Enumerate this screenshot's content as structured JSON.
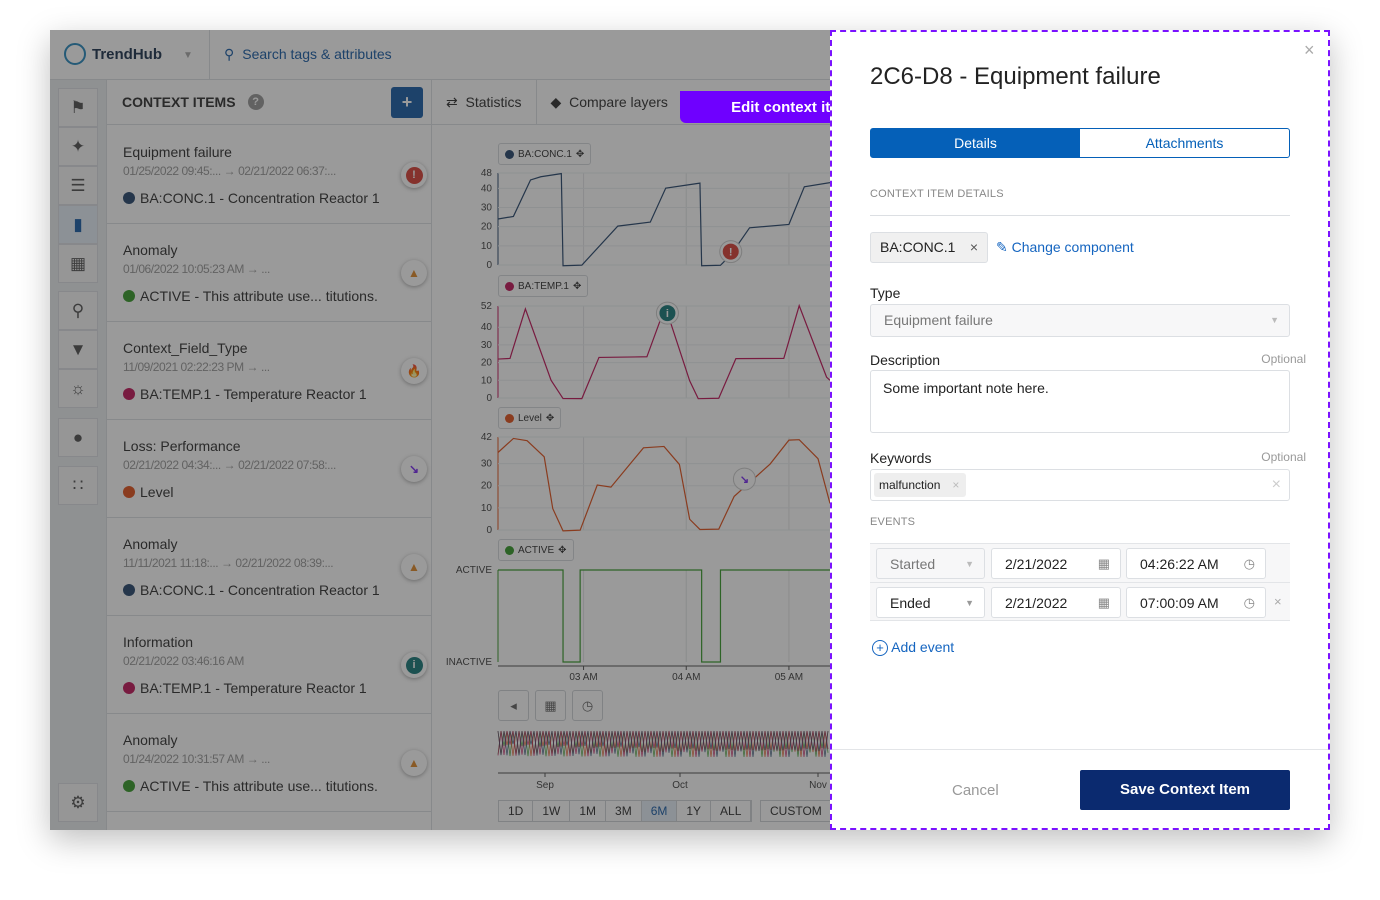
{
  "app": {
    "name": "TrendHub",
    "search_placeholder": "Search tags & attributes"
  },
  "rail": {
    "items": [
      "tag-icon",
      "asset-icon",
      "layers-icon",
      "comment-icon",
      "dashboard-icon",
      "search-icon",
      "filter-icon",
      "fingerprint-icon",
      "bulb-icon",
      "scatter-icon",
      "gear-icon"
    ],
    "active": "comment-icon"
  },
  "context_panel": {
    "title": "CONTEXT ITEMS",
    "add_label": "+",
    "items": [
      {
        "title": "Equipment failure",
        "dates": "01/25/2022 09:45:...  →  02/21/2022 06:37:...",
        "attribute": "BA:CONC.1 - Concentration Reactor 1",
        "attr_color": "#2b4a6f",
        "icon": "exclamation-icon",
        "icon_color": "#d9433a"
      },
      {
        "title": "Anomaly",
        "dates": "01/06/2022 10:05:23 AM  →  ...",
        "attribute": "ACTIVE - This attribute use... titutions.",
        "attr_color": "#3a9b2c",
        "icon": "warning-icon",
        "icon_color": "#e08a2c"
      },
      {
        "title": "Context_Field_Type",
        "dates": "11/09/2021 02:22:23 PM  →  ...",
        "attribute": "BA:TEMP.1 - Temperature Reactor 1",
        "attr_color": "#c2185b",
        "icon": "flame-icon",
        "icon_color": "#e08a2c"
      },
      {
        "title": "Loss: Performance",
        "dates": "02/21/2022 04:34:...  →  02/21/2022 07:58:...",
        "attribute": "Level",
        "attr_color": "#e2541f",
        "icon": "trend-down-icon",
        "icon_color": "#7b2cf0"
      },
      {
        "title": "Anomaly",
        "dates": "11/11/2021 11:18:...  →  02/21/2022 08:39:...",
        "attribute": "BA:CONC.1 - Concentration Reactor 1",
        "attr_color": "#2b4a6f",
        "icon": "warning-icon",
        "icon_color": "#e08a2c"
      },
      {
        "title": "Information",
        "dates": "02/21/2022 03:46:16 AM",
        "attribute": "BA:TEMP.1 - Temperature Reactor 1",
        "attr_color": "#c2185b",
        "icon": "info-icon",
        "icon_color": "#1b7a7a"
      },
      {
        "title": "Anomaly",
        "dates": "01/24/2022 10:31:57 AM  →  ...",
        "attribute": "ACTIVE - This attribute use... titutions.",
        "attr_color": "#3a9b2c",
        "icon": "warning-icon",
        "icon_color": "#e08a2c"
      }
    ]
  },
  "chart_toolbar": {
    "statistics": "Statistics",
    "compare_layers": "Compare layers"
  },
  "chart_data": [
    {
      "type": "line",
      "legend": "BA:CONC.1",
      "color": "#2b4a6f",
      "ylim": [
        0,
        48
      ],
      "yticks": [
        0,
        10,
        20,
        30,
        40,
        48
      ],
      "points": [
        [
          "02:10",
          24
        ],
        [
          "02:19",
          25
        ],
        [
          "02:29",
          44
        ],
        [
          "02:35",
          46
        ],
        [
          "02:47",
          48
        ],
        [
          "02:48",
          0
        ],
        [
          "02:59",
          0
        ],
        [
          "03:20",
          20
        ],
        [
          "03:39",
          22
        ],
        [
          "03:48",
          40
        ],
        [
          "04:08",
          43
        ],
        [
          "04:09",
          0
        ],
        [
          "04:20",
          0
        ],
        [
          "04:26",
          5
        ],
        [
          "04:37",
          19
        ],
        [
          "05:00",
          21
        ],
        [
          "05:09",
          41
        ],
        [
          "05:24",
          43
        ]
      ]
    },
    {
      "type": "line",
      "legend": "BA:TEMP.1",
      "color": "#c2185b",
      "ylim": [
        0,
        52
      ],
      "yticks": [
        0,
        10,
        20,
        30,
        40,
        52
      ],
      "points": [
        [
          "02:10",
          22
        ],
        [
          "02:17",
          22
        ],
        [
          "02:26",
          50
        ],
        [
          "02:41",
          10
        ],
        [
          "02:48",
          0
        ],
        [
          "02:59",
          0
        ],
        [
          "03:09",
          23
        ],
        [
          "03:37",
          23
        ],
        [
          "03:45",
          44
        ],
        [
          "03:50",
          45
        ],
        [
          "04:02",
          10
        ],
        [
          "04:07",
          0
        ],
        [
          "04:19",
          0
        ],
        [
          "04:29",
          22
        ],
        [
          "04:57",
          22
        ],
        [
          "05:06",
          52
        ],
        [
          "05:22",
          12
        ],
        [
          "05:24",
          10
        ]
      ]
    },
    {
      "type": "line",
      "legend": "Level",
      "color": "#e2541f",
      "ylim": [
        0,
        42
      ],
      "yticks": [
        0,
        10,
        20,
        30,
        42
      ],
      "points": [
        [
          "02:10",
          35
        ],
        [
          "02:19",
          41
        ],
        [
          "02:27",
          40
        ],
        [
          "02:37",
          33
        ],
        [
          "02:42",
          10
        ],
        [
          "02:48",
          0
        ],
        [
          "02:58",
          0
        ],
        [
          "03:08",
          20
        ],
        [
          "03:16",
          19
        ],
        [
          "03:35",
          37
        ],
        [
          "03:47",
          38
        ],
        [
          "03:56",
          30
        ],
        [
          "04:02",
          5
        ],
        [
          "04:08",
          0
        ],
        [
          "04:19",
          0
        ],
        [
          "04:28",
          15
        ],
        [
          "04:49",
          30
        ],
        [
          "05:00",
          41
        ],
        [
          "05:06",
          41
        ],
        [
          "05:17",
          32
        ],
        [
          "05:24",
          12
        ]
      ]
    },
    {
      "type": "line",
      "legend": "ACTIVE",
      "color": "#3a9b2c",
      "categories": [
        "INACTIVE",
        "ACTIVE"
      ],
      "points": [
        [
          "02:10",
          1
        ],
        [
          "02:48",
          1
        ],
        [
          "02:48",
          0
        ],
        [
          "02:58",
          0
        ],
        [
          "02:58",
          1
        ],
        [
          "04:09",
          1
        ],
        [
          "04:09",
          0
        ],
        [
          "04:20",
          0
        ],
        [
          "04:20",
          1
        ],
        [
          "05:24",
          1
        ]
      ]
    }
  ],
  "x_axis": {
    "ticks": [
      {
        "t": "03:00",
        "label": "03 AM"
      },
      {
        "t": "04:00",
        "label": "04 AM"
      },
      {
        "t": "05:00",
        "label": "05 AM"
      }
    ],
    "range": [
      "02:10",
      "05:24"
    ]
  },
  "annotations": [
    {
      "chart": 0,
      "t": "04:26",
      "v": 7,
      "icon": "exclamation-icon",
      "color": "#d9433a"
    },
    {
      "chart": 1,
      "t": "03:49",
      "v": 48,
      "icon": "info-icon",
      "color": "#1b7a7a"
    },
    {
      "chart": 2,
      "t": "04:34",
      "v": 23,
      "icon": "trend-down-icon",
      "color": "#7b2cf0"
    }
  ],
  "navigator": {
    "months": [
      "Sep",
      "Oct",
      "Nov"
    ]
  },
  "ranges": {
    "options": [
      "1D",
      "1W",
      "1M",
      "3M",
      "6M",
      "1Y",
      "ALL"
    ],
    "selected": "6M",
    "custom": "CUSTOM"
  },
  "tag": {
    "label": "Edit context item",
    "color": "#6f00ff"
  },
  "modal": {
    "title": "2C6-D8 - Equipment failure",
    "tabs": [
      "Details",
      "Attachments"
    ],
    "active_tab": "Details",
    "section": "CONTEXT ITEM DETAILS",
    "component": "BA:CONC.1",
    "change_component": "Change component",
    "type_label": "Type",
    "type_value": "Equipment failure",
    "description_label": "Description",
    "optional": "Optional",
    "description_value": "Some important note here.",
    "keywords_label": "Keywords",
    "keywords": [
      "malfunction"
    ],
    "events_label": "EVENTS",
    "events": [
      {
        "kind": "Started",
        "date": "2/21/2022",
        "time": "04:26:22 AM"
      },
      {
        "kind": "Ended",
        "date": "2/21/2022",
        "time": "07:00:09 AM"
      }
    ],
    "add_event": "Add event",
    "cancel": "Cancel",
    "save": "Save Context Item"
  }
}
